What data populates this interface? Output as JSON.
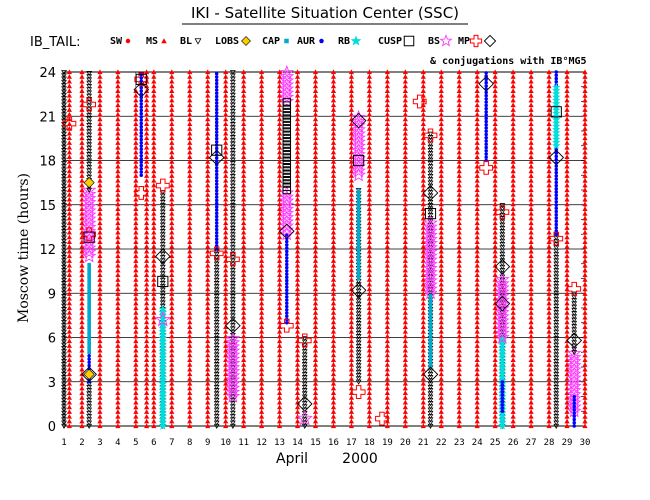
{
  "chart_data": {
    "type": "scatter",
    "title": "IKI - Satellite Situation Center (SSC)",
    "satellite_label": "IB_TAIL:",
    "conjugations_note": "& conjugations with IB°MG5",
    "xlabel_month": "April",
    "xlabel_year": "2000",
    "ylabel": "Moscow time (hours)",
    "xlim": [
      1,
      30
    ],
    "ylim": [
      0,
      24
    ],
    "x_ticks": [
      1,
      2,
      3,
      4,
      5,
      6,
      7,
      8,
      9,
      10,
      11,
      12,
      13,
      14,
      15,
      16,
      17,
      18,
      19,
      20,
      21,
      22,
      23,
      24,
      25,
      26,
      27,
      28,
      29,
      30
    ],
    "y_ticks": [
      0,
      3,
      6,
      9,
      12,
      15,
      18,
      21,
      24
    ],
    "grid": true,
    "legend": [
      {
        "label": "SW",
        "color": "#ff0000",
        "marker": "dot"
      },
      {
        "label": "MS",
        "color": "#ff0000",
        "marker": "triangle-up"
      },
      {
        "label": "BL",
        "color": "#000000",
        "marker": "triangle-down-open"
      },
      {
        "label": "LOBS",
        "color": "#ffcc00",
        "marker": "diamond"
      },
      {
        "label": "CAP",
        "color": "#00aacc",
        "marker": "square"
      },
      {
        "label": "AUR",
        "color": "#0000ff",
        "marker": "dot"
      },
      {
        "label": "RB",
        "color": "#00dddd",
        "marker": "star"
      },
      {
        "label": "CUSP",
        "color": "#000000",
        "marker": "square-open"
      },
      {
        "label": "BS",
        "color": "#ff33ff",
        "marker": "star-open"
      },
      {
        "label": "MP",
        "color": "#ff0000",
        "marker": "cross-open"
      },
      {
        "label": "",
        "color": "#000000",
        "marker": "diamond-open"
      }
    ],
    "orbit_columns": [
      {
        "day": 1.0,
        "segments": [
          {
            "region": "BL",
            "from": 0,
            "to": 24
          }
        ]
      },
      {
        "day": 1.3,
        "segments": [
          {
            "region": "MS",
            "from": 0,
            "to": 24
          }
        ]
      },
      {
        "day": 2.0,
        "segments": [
          {
            "region": "MS",
            "from": 0,
            "to": 24
          }
        ]
      },
      {
        "day": 2.4,
        "segments": [
          {
            "region": "BL",
            "from": 0,
            "to": 3
          },
          {
            "region": "AUR",
            "from": 3,
            "to": 11
          },
          {
            "region": "CAP",
            "from": 5,
            "to": 11
          },
          {
            "region": "BS",
            "from": 11.5,
            "to": 16
          },
          {
            "region": "BL",
            "from": 16,
            "to": 24
          }
        ]
      },
      {
        "day": 3.0,
        "segments": [
          {
            "region": "MS",
            "from": 0,
            "to": 24
          }
        ]
      },
      {
        "day": 4.0,
        "segments": [
          {
            "region": "MS",
            "from": 0,
            "to": 24
          }
        ]
      },
      {
        "day": 5.0,
        "segments": [
          {
            "region": "MS",
            "from": 0,
            "to": 23
          }
        ]
      },
      {
        "day": 5.3,
        "segments": [
          {
            "region": "AUR",
            "from": 17,
            "to": 24
          }
        ]
      },
      {
        "day": 5.6,
        "segments": [
          {
            "region": "MS",
            "from": 0,
            "to": 24
          }
        ]
      },
      {
        "day": 6.0,
        "segments": [
          {
            "region": "MS",
            "from": 0,
            "to": 24
          }
        ]
      },
      {
        "day": 6.5,
        "segments": [
          {
            "region": "BL",
            "from": 0,
            "to": 16
          },
          {
            "region": "AUR",
            "from": 0,
            "to": 8
          },
          {
            "region": "RB",
            "from": 0,
            "to": 8
          }
        ]
      },
      {
        "day": 7.0,
        "segments": [
          {
            "region": "MS",
            "from": 0,
            "to": 24
          }
        ]
      },
      {
        "day": 8.0,
        "segments": [
          {
            "region": "MS",
            "from": 0,
            "to": 24
          }
        ]
      },
      {
        "day": 9.0,
        "segments": [
          {
            "region": "MS",
            "from": 0,
            "to": 24
          }
        ]
      },
      {
        "day": 9.5,
        "segments": [
          {
            "region": "AUR",
            "from": 12,
            "to": 24
          },
          {
            "region": "BL",
            "from": 0,
            "to": 12
          }
        ]
      },
      {
        "day": 10.0,
        "segments": [
          {
            "region": "MS",
            "from": 0,
            "to": 24
          }
        ]
      },
      {
        "day": 10.4,
        "segments": [
          {
            "region": "BL",
            "from": 0,
            "to": 24
          },
          {
            "region": "BS",
            "from": 2,
            "to": 6
          }
        ]
      },
      {
        "day": 11.0,
        "segments": [
          {
            "region": "MS",
            "from": 0,
            "to": 24
          }
        ]
      },
      {
        "day": 12.0,
        "segments": [
          {
            "region": "MS",
            "from": 0,
            "to": 24
          }
        ]
      },
      {
        "day": 13.0,
        "segments": [
          {
            "region": "MS",
            "from": 0,
            "to": 24
          }
        ]
      },
      {
        "day": 13.4,
        "segments": [
          {
            "region": "AUR",
            "from": 7,
            "to": 13
          },
          {
            "region": "BS",
            "from": 13,
            "to": 16
          },
          {
            "region": "BS",
            "from": 22,
            "to": 24
          },
          {
            "region": "CUSP",
            "from": 16,
            "to": 22
          }
        ]
      },
      {
        "day": 14.0,
        "segments": [
          {
            "region": "MS",
            "from": 0,
            "to": 24
          }
        ]
      },
      {
        "day": 14.4,
        "segments": [
          {
            "region": "BL",
            "from": 0,
            "to": 6
          }
        ]
      },
      {
        "day": 15.0,
        "segments": [
          {
            "region": "MS",
            "from": 0,
            "to": 24
          }
        ]
      },
      {
        "day": 16.0,
        "segments": [
          {
            "region": "MS",
            "from": 0,
            "to": 24
          }
        ]
      },
      {
        "day": 17.0,
        "segments": [
          {
            "region": "MS",
            "from": 0,
            "to": 24
          }
        ]
      },
      {
        "day": 17.4,
        "segments": [
          {
            "region": "BL",
            "from": 3,
            "to": 16
          },
          {
            "region": "BS",
            "from": 17,
            "to": 21
          },
          {
            "region": "CAP",
            "from": 10,
            "to": 16
          }
        ]
      },
      {
        "day": 18.0,
        "segments": [
          {
            "region": "MS",
            "from": 0,
            "to": 24
          }
        ]
      },
      {
        "day": 19.0,
        "segments": [
          {
            "region": "MS",
            "from": 0,
            "to": 24
          }
        ]
      },
      {
        "day": 20.0,
        "segments": [
          {
            "region": "MS",
            "from": 0,
            "to": 24
          }
        ]
      },
      {
        "day": 21.0,
        "segments": [
          {
            "region": "MS",
            "from": 0,
            "to": 24
          }
        ]
      },
      {
        "day": 21.4,
        "segments": [
          {
            "region": "BL",
            "from": 0,
            "to": 20
          },
          {
            "region": "BS",
            "from": 9,
            "to": 14
          },
          {
            "region": "CAP",
            "from": 4,
            "to": 9
          }
        ]
      },
      {
        "day": 22.0,
        "segments": [
          {
            "region": "MS",
            "from": 0,
            "to": 24
          }
        ]
      },
      {
        "day": 23.0,
        "segments": [
          {
            "region": "MS",
            "from": 0,
            "to": 24
          }
        ]
      },
      {
        "day": 24.0,
        "segments": [
          {
            "region": "MS",
            "from": 0,
            "to": 24
          }
        ]
      },
      {
        "day": 24.5,
        "segments": [
          {
            "region": "AUR",
            "from": 18,
            "to": 24
          }
        ]
      },
      {
        "day": 25.0,
        "segments": [
          {
            "region": "MS",
            "from": 0,
            "to": 24
          }
        ]
      },
      {
        "day": 25.4,
        "segments": [
          {
            "region": "BL",
            "from": 0,
            "to": 15
          },
          {
            "region": "RB",
            "from": 0,
            "to": 6
          },
          {
            "region": "AUR",
            "from": 1,
            "to": 3
          },
          {
            "region": "BS",
            "from": 6,
            "to": 10
          }
        ]
      },
      {
        "day": 26.0,
        "segments": [
          {
            "region": "MS",
            "from": 0,
            "to": 24
          }
        ]
      },
      {
        "day": 27.0,
        "segments": [
          {
            "region": "MS",
            "from": 0,
            "to": 24
          }
        ]
      },
      {
        "day": 28.0,
        "segments": [
          {
            "region": "MS",
            "from": 0,
            "to": 24
          }
        ]
      },
      {
        "day": 28.4,
        "segments": [
          {
            "region": "BL",
            "from": 0,
            "to": 13
          },
          {
            "region": "AUR",
            "from": 13,
            "to": 24
          },
          {
            "region": "RB",
            "from": 19,
            "to": 23
          }
        ]
      },
      {
        "day": 29.0,
        "segments": [
          {
            "region": "MS",
            "from": 0,
            "to": 24
          }
        ]
      },
      {
        "day": 29.4,
        "segments": [
          {
            "region": "BS",
            "from": 1,
            "to": 5
          },
          {
            "region": "BL",
            "from": 5,
            "to": 9
          },
          {
            "region": "AUR",
            "from": 0,
            "to": 2
          }
        ]
      },
      {
        "day": 30.0,
        "segments": [
          {
            "region": "MS",
            "from": 0,
            "to": 24
          }
        ]
      }
    ],
    "markers": [
      {
        "region": "MP",
        "day": 1.3,
        "hour": 20.5
      },
      {
        "region": "MP",
        "day": 2.4,
        "hour": 21.8
      },
      {
        "region": "MP",
        "day": 2.4,
        "hour": 13
      },
      {
        "region": "LOBS",
        "day": 2.4,
        "hour": 16.5
      },
      {
        "region": "CUSP",
        "day": 2.4,
        "hour": 12.8
      },
      {
        "region": "LOBS",
        "day": 2.4,
        "hour": 3.5
      },
      {
        "region": "CONJ",
        "day": 2.4,
        "hour": 3.5
      },
      {
        "region": "MP",
        "day": 5.3,
        "hour": 15.8
      },
      {
        "region": "MP",
        "day": 5.3,
        "hour": 23.5
      },
      {
        "region": "CUSP",
        "day": 5.3,
        "hour": 23.5
      },
      {
        "region": "CONJ",
        "day": 5.3,
        "hour": 22.8
      },
      {
        "region": "MP",
        "day": 6.5,
        "hour": 16.3
      },
      {
        "region": "CONJ",
        "day": 6.5,
        "hour": 11.5
      },
      {
        "region": "CUSP",
        "day": 6.5,
        "hour": 9.8
      },
      {
        "region": "BS",
        "day": 6.5,
        "hour": 7.2
      },
      {
        "region": "MP",
        "day": 9.5,
        "hour": 11.7
      },
      {
        "region": "CUSP",
        "day": 9.5,
        "hour": 18.7
      },
      {
        "region": "CONJ",
        "day": 9.5,
        "hour": 18.2
      },
      {
        "region": "MP",
        "day": 10.4,
        "hour": 11.3
      },
      {
        "region": "CONJ",
        "day": 10.4,
        "hour": 6.8
      },
      {
        "region": "MP",
        "day": 13.4,
        "hour": 6.8
      },
      {
        "region": "CONJ",
        "day": 13.4,
        "hour": 13.2
      },
      {
        "region": "MP",
        "day": 14.4,
        "hour": 5.8
      },
      {
        "region": "CONJ",
        "day": 14.4,
        "hour": 1.5
      },
      {
        "region": "BS",
        "day": 14.4,
        "hour": 0.5
      },
      {
        "region": "MP",
        "day": 17.4,
        "hour": 2.3
      },
      {
        "region": "CUSP",
        "day": 17.4,
        "hour": 18
      },
      {
        "region": "CONJ",
        "day": 17.4,
        "hour": 20.7
      },
      {
        "region": "CONJ",
        "day": 17.4,
        "hour": 9.2
      },
      {
        "region": "MP",
        "day": 18.7,
        "hour": 0.5
      },
      {
        "region": "MP",
        "day": 20.8,
        "hour": 22
      },
      {
        "region": "MP",
        "day": 21.4,
        "hour": 19.7
      },
      {
        "region": "CONJ",
        "day": 21.4,
        "hour": 15.8
      },
      {
        "region": "CUSP",
        "day": 21.4,
        "hour": 14.4
      },
      {
        "region": "CONJ",
        "day": 21.4,
        "hour": 3.5
      },
      {
        "region": "MP",
        "day": 24.5,
        "hour": 17.5
      },
      {
        "region": "CONJ",
        "day": 24.5,
        "hour": 23.2
      },
      {
        "region": "MP",
        "day": 25.4,
        "hour": 14.5
      },
      {
        "region": "CONJ",
        "day": 25.4,
        "hour": 10.8
      },
      {
        "region": "CONJ",
        "day": 25.4,
        "hour": 8.3
      },
      {
        "region": "MP",
        "day": 28.4,
        "hour": 12.7
      },
      {
        "region": "CONJ",
        "day": 28.4,
        "hour": 18.2
      },
      {
        "region": "CUSP",
        "day": 28.4,
        "hour": 21.3
      },
      {
        "region": "MP",
        "day": 29.4,
        "hour": 9.3
      },
      {
        "region": "CONJ",
        "day": 29.4,
        "hour": 5.8
      }
    ]
  }
}
